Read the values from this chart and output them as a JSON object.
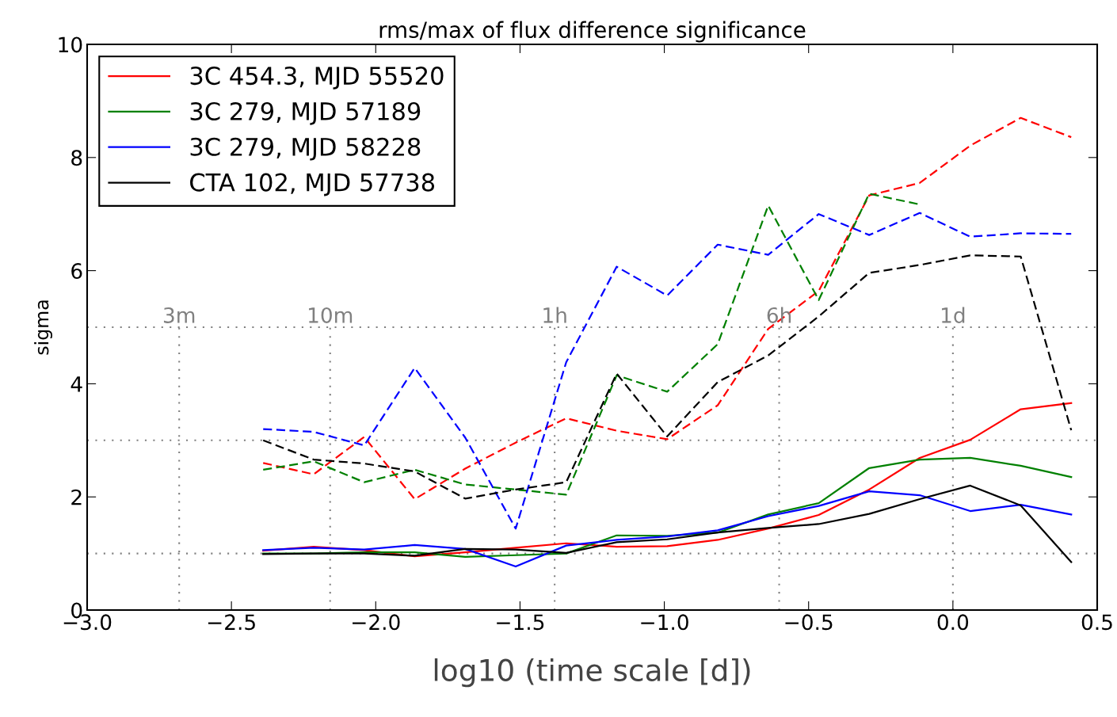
{
  "chart_data": {
    "type": "line",
    "title": "rms/max of flux difference significance",
    "xlabel": "log10 (time scale [d])",
    "ylabel": "sigma",
    "x": [
      -2.39,
      -2.215,
      -2.04,
      -1.865,
      -1.69,
      -1.515,
      -1.34,
      -1.165,
      -0.99,
      -0.815,
      -0.64,
      -0.465,
      -0.29,
      -0.115,
      0.06,
      0.235,
      0.41
    ],
    "series": [
      {
        "name": "3C 454.3, MJD 55520",
        "color": "#ff0000",
        "line_style": "solid",
        "values": [
          1.05,
          1.12,
          1.06,
          0.95,
          1.02,
          1.1,
          1.18,
          1.12,
          1.13,
          1.24,
          1.44,
          1.68,
          2.13,
          2.69,
          3.01,
          3.55,
          3.66
        ]
      },
      {
        "name": "3C 279, MJD 57189",
        "color": "#008000",
        "line_style": "solid",
        "values": [
          1.0,
          1.0,
          1.02,
          1.02,
          0.94,
          0.97,
          1.0,
          1.32,
          1.31,
          1.37,
          1.69,
          1.89,
          2.51,
          2.66,
          2.69,
          2.55,
          2.35
        ]
      },
      {
        "name": "3C 279, MJD 58228",
        "color": "#0000ff",
        "line_style": "solid",
        "values": [
          1.06,
          1.1,
          1.07,
          1.15,
          1.08,
          0.77,
          1.14,
          1.24,
          1.3,
          1.41,
          1.66,
          1.84,
          2.1,
          2.03,
          1.75,
          1.86,
          1.69
        ]
      },
      {
        "name": "CTA 102, MJD 57738",
        "color": "#000000",
        "line_style": "solid",
        "values": [
          0.99,
          1.0,
          1.0,
          0.96,
          1.08,
          1.07,
          1.01,
          1.2,
          1.25,
          1.37,
          1.45,
          1.52,
          1.7,
          1.96,
          2.2,
          1.85,
          0.85
        ]
      },
      {
        "color": "#ff0000",
        "line_style": "dashed",
        "values": [
          2.6,
          2.4,
          3.06,
          1.96,
          2.5,
          2.96,
          3.39,
          3.17,
          3.02,
          3.62,
          4.97,
          5.64,
          7.33,
          7.55,
          8.21,
          8.7,
          8.36
        ]
      },
      {
        "color": "#008000",
        "line_style": "dashed",
        "values": [
          2.48,
          2.63,
          2.26,
          2.48,
          2.22,
          2.13,
          2.04,
          4.15,
          3.86,
          4.7,
          7.15,
          5.48,
          7.36,
          7.17,
          null,
          null,
          null
        ]
      },
      {
        "color": "#0000ff",
        "line_style": "dashed",
        "values": [
          3.2,
          3.15,
          2.91,
          4.28,
          3.05,
          1.44,
          4.38,
          6.07,
          5.56,
          6.46,
          6.28,
          7.0,
          6.63,
          7.02,
          6.6,
          6.66,
          6.65
        ]
      },
      {
        "color": "#000000",
        "line_style": "dashed",
        "values": [
          3.0,
          2.66,
          2.59,
          2.45,
          1.97,
          2.13,
          2.26,
          4.18,
          3.07,
          4.03,
          4.5,
          5.19,
          5.96,
          6.1,
          6.27,
          6.25,
          3.18
        ]
      }
    ],
    "xlim": [
      -3.0,
      0.5
    ],
    "ylim": [
      0,
      10
    ],
    "xticks": [
      {
        "value": -3.0,
        "label": "−3.0"
      },
      {
        "value": -2.5,
        "label": "−2.5"
      },
      {
        "value": -2.0,
        "label": "−2.0"
      },
      {
        "value": -1.5,
        "label": "−1.5"
      },
      {
        "value": -1.0,
        "label": "−1.0"
      },
      {
        "value": -0.5,
        "label": "−0.5"
      },
      {
        "value": 0.0,
        "label": "0.0"
      },
      {
        "value": 0.5,
        "label": "0.5"
      }
    ],
    "yticks": [
      0,
      2,
      4,
      6,
      8,
      10
    ],
    "ref_lines": [
      {
        "axis": "y",
        "value": 1,
        "color": "#808080",
        "line_style": "dotted"
      },
      {
        "axis": "y",
        "value": 3,
        "color": "#808080",
        "line_style": "dotted"
      },
      {
        "axis": "y",
        "value": 5,
        "color": "#808080",
        "line_style": "dotted"
      },
      {
        "axis": "x",
        "value": -2.681,
        "label": "3m",
        "color": "#808080",
        "line_style": "dotted"
      },
      {
        "axis": "x",
        "value": -2.158,
        "label": "10m",
        "color": "#808080",
        "line_style": "dotted"
      },
      {
        "axis": "x",
        "value": -1.38,
        "label": "1h",
        "color": "#808080",
        "line_style": "dotted"
      },
      {
        "axis": "x",
        "value": -0.602,
        "label": "6h",
        "color": "#808080",
        "line_style": "dotted"
      },
      {
        "axis": "x",
        "value": 0.0,
        "label": "1d",
        "color": "#808080",
        "line_style": "dotted"
      }
    ],
    "legend": "top left",
    "grid": false,
    "marker": "none"
  }
}
